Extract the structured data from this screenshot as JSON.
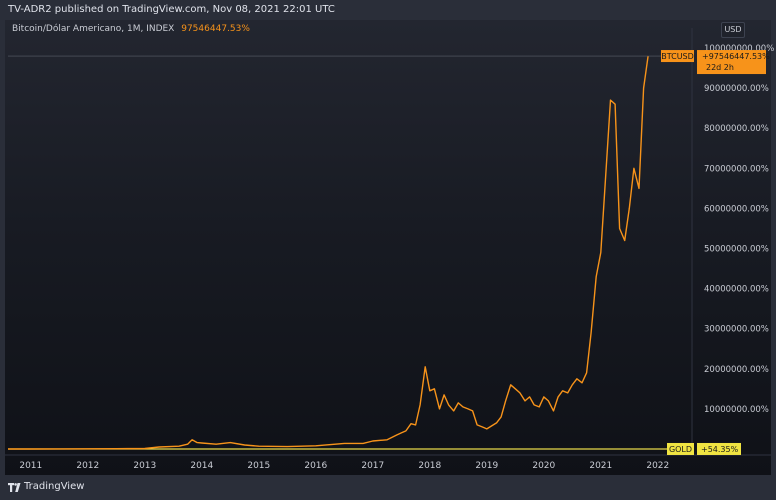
{
  "header": {
    "published_text": "TV-ADR2 published on TradingView.com, Nov 08, 2021 22:01 UTC"
  },
  "legend": {
    "symbol_text": "Bitcoin/Dólar Americano, 1M, INDEX",
    "value_text": "97546447.53%"
  },
  "currency_label": "USD",
  "footer": {
    "brand": "TradingView"
  },
  "colors": {
    "btc_line": "#f7931a",
    "gold_line": "#e6d84a",
    "btc_label_bg": "#f7931a",
    "gold_label_bg": "#f0e442",
    "axis_text": "#c9ccd4"
  },
  "chart_data": {
    "type": "line",
    "title": "Bitcoin/Dólar Americano, 1M, INDEX",
    "xlabel": "",
    "ylabel": "",
    "y_unit": "%",
    "xlim": [
      2010.6,
      2022.6
    ],
    "ylim": [
      -1500000,
      102000000
    ],
    "x_tick_labels": [
      "2011",
      "2012",
      "2013",
      "2014",
      "2015",
      "2016",
      "2017",
      "2018",
      "2019",
      "2020",
      "2021",
      "2022"
    ],
    "x_ticks": [
      2011,
      2012,
      2013,
      2014,
      2015,
      2016,
      2017,
      2018,
      2019,
      2020,
      2021,
      2022
    ],
    "y_ticks": [
      10000000,
      20000000,
      30000000,
      40000000,
      50000000,
      60000000,
      70000000,
      80000000,
      90000000,
      100000000
    ],
    "y_tick_labels": [
      "10000000.00%",
      "20000000.00%",
      "30000000.00%",
      "40000000.00%",
      "50000000.00%",
      "60000000.00%",
      "70000000.00%",
      "80000000.00%",
      "90000000.00%",
      "100000000.00%"
    ],
    "grid": false,
    "series": [
      {
        "name": "BTCUSD",
        "color": "#f7931a",
        "last_label": "+97546447.53%",
        "last_sublabel": "22d 2h",
        "x": [
          2010.6,
          2011.0,
          2011.5,
          2012.0,
          2012.5,
          2013.0,
          2013.25,
          2013.6,
          2013.75,
          2013.83,
          2013.92,
          2014.0,
          2014.25,
          2014.5,
          2014.75,
          2015.0,
          2015.5,
          2016.0,
          2016.5,
          2016.83,
          2017.0,
          2017.25,
          2017.42,
          2017.5,
          2017.58,
          2017.67,
          2017.75,
          2017.83,
          2017.92,
          2018.0,
          2018.08,
          2018.17,
          2018.25,
          2018.33,
          2018.42,
          2018.5,
          2018.58,
          2018.67,
          2018.75,
          2018.83,
          2018.92,
          2019.0,
          2019.17,
          2019.25,
          2019.33,
          2019.42,
          2019.5,
          2019.58,
          2019.67,
          2019.75,
          2019.83,
          2019.92,
          2020.0,
          2020.08,
          2020.17,
          2020.25,
          2020.33,
          2020.42,
          2020.5,
          2020.58,
          2020.67,
          2020.75,
          2020.83,
          2020.92,
          2021.0,
          2021.08,
          2021.17,
          2021.25,
          2021.33,
          2021.42,
          2021.5,
          2021.58,
          2021.67,
          2021.75,
          2021.83
        ],
        "y": [
          0,
          5000,
          20000,
          40000,
          60000,
          130000,
          500000,
          700000,
          1200000,
          2300000,
          1600000,
          1500000,
          1200000,
          1600000,
          1000000,
          700000,
          600000,
          800000,
          1400000,
          1400000,
          2000000,
          2300000,
          3500000,
          4000000,
          4500000,
          6300000,
          6000000,
          11000000,
          20500000,
          14500000,
          15000000,
          10000000,
          13500000,
          11000000,
          9500000,
          11500000,
          10500000,
          10000000,
          9500000,
          6000000,
          5500000,
          5000000,
          6500000,
          8000000,
          12000000,
          16000000,
          15000000,
          14000000,
          12000000,
          13000000,
          11000000,
          10500000,
          13000000,
          12000000,
          9500000,
          13000000,
          14500000,
          14000000,
          16000000,
          17500000,
          16500000,
          19000000,
          29000000,
          43000000,
          49000000,
          67000000,
          87000000,
          86000000,
          55000000,
          52000000,
          60000000,
          70000000,
          65000000,
          90000000,
          98000000
        ]
      },
      {
        "name": "GOLD",
        "color": "#e6d84a",
        "last_label": "+54.35%",
        "x": [
          2010.6,
          2022.6
        ],
        "y": [
          0,
          54
        ]
      }
    ]
  }
}
